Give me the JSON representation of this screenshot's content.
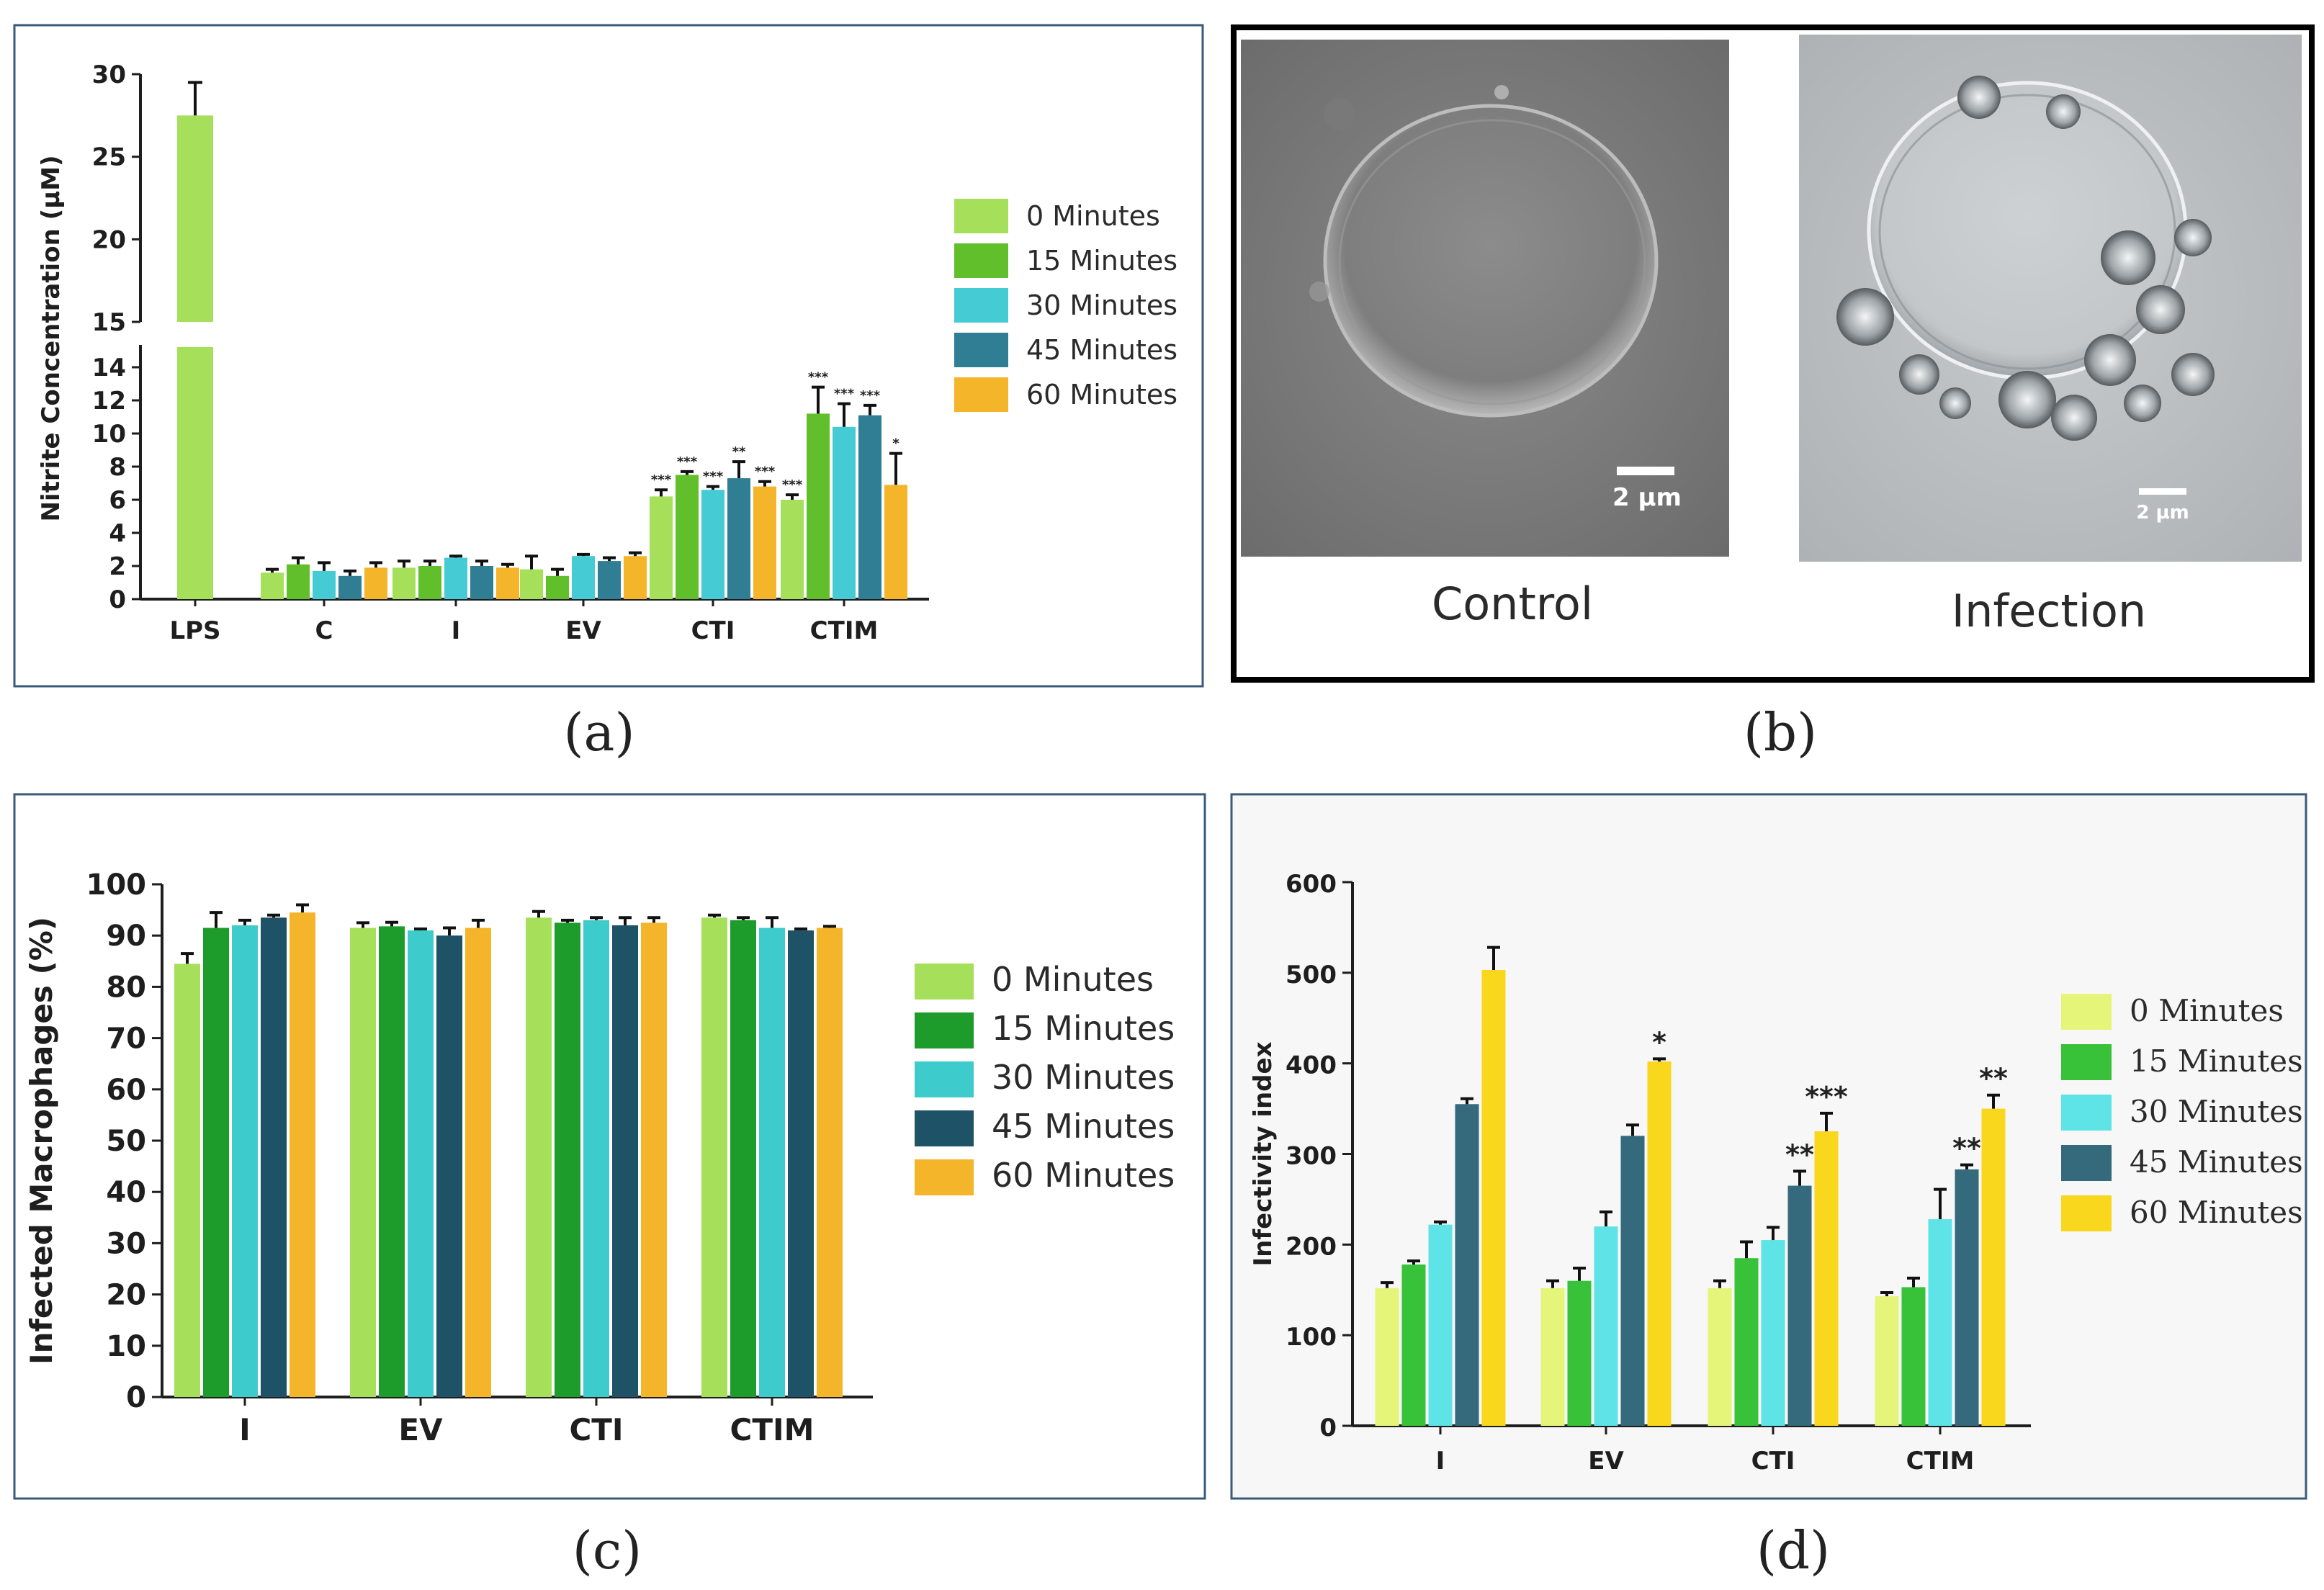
{
  "figure_labels": {
    "a": "(a)",
    "b": "(b)",
    "c": "(c)",
    "d": "(d)"
  },
  "colors": {
    "a": [
      "#a6e05a",
      "#62bf2c",
      "#45cbd4",
      "#2f7e93",
      "#f5b52b"
    ],
    "c": [
      "#a6e05a",
      "#1d9b2b",
      "#3ecbcb",
      "#1e5266",
      "#f5b52b"
    ],
    "d": [
      "#e5f57a",
      "#38c23a",
      "#5ee3e6",
      "#346a7c",
      "#f8d71c"
    ]
  },
  "micrographs": {
    "control": {
      "caption": "Control",
      "scale_label": "2 µm"
    },
    "infection": {
      "caption": "Infection",
      "scale_label": "2 µm"
    }
  },
  "chart_data": [
    {
      "id": "a",
      "type": "bar",
      "ylabel": "Nitrite Concentration (µM)",
      "xlabel": "",
      "axis_break": [
        15,
        15
      ],
      "ylim_lower": [
        0,
        15
      ],
      "ylim_upper": [
        15,
        30
      ],
      "yticks_lower": [
        "0",
        "2",
        "4",
        "6",
        "8",
        "10",
        "12",
        "14"
      ],
      "yticks_upper": [
        "15",
        "20",
        "25",
        "30"
      ],
      "categories": [
        "LPS",
        "C",
        "I",
        "EV",
        "CTI",
        "CTIM"
      ],
      "legend": [
        "0 Minutes",
        "15 Minutes",
        "30 Minutes",
        "45 Minutes",
        "60 Minutes"
      ],
      "legend_position": "right",
      "series": [
        {
          "name": "0 Minutes",
          "values": [
            27.5,
            1.6,
            1.9,
            1.8,
            6.2,
            6.0
          ],
          "errors": [
            2.0,
            0.2,
            0.4,
            0.8,
            0.4,
            0.3
          ]
        },
        {
          "name": "15 Minutes",
          "values": [
            null,
            2.1,
            2.0,
            1.4,
            7.5,
            11.2
          ],
          "errors": [
            null,
            0.4,
            0.3,
            0.4,
            0.2,
            1.6
          ]
        },
        {
          "name": "30 Minutes",
          "values": [
            null,
            1.7,
            2.5,
            2.6,
            6.6,
            10.4
          ],
          "errors": [
            null,
            0.5,
            0.1,
            0.1,
            0.2,
            1.4
          ]
        },
        {
          "name": "45 Minutes",
          "values": [
            null,
            1.4,
            2.0,
            2.3,
            7.3,
            11.1
          ],
          "errors": [
            null,
            0.3,
            0.3,
            0.2,
            1.0,
            0.6
          ]
        },
        {
          "name": "60 Minutes",
          "values": [
            null,
            1.9,
            1.9,
            2.6,
            6.8,
            6.9
          ],
          "errors": [
            null,
            0.3,
            0.2,
            0.2,
            0.3,
            1.9
          ]
        }
      ],
      "annotations": [
        [
          "",
          "",
          "",
          "",
          "***",
          "***"
        ],
        [
          "",
          "",
          "",
          "",
          "***",
          "***"
        ],
        [
          "",
          "",
          "",
          "",
          "***",
          "***"
        ],
        [
          "",
          "",
          "",
          "",
          "**",
          "***"
        ],
        [
          "",
          "",
          "",
          "",
          "***",
          "*"
        ]
      ]
    },
    {
      "id": "c",
      "type": "bar",
      "ylabel": "Infected Macrophages (%)",
      "xlabel": "",
      "ylim": [
        0,
        100
      ],
      "yticks": [
        "0",
        "10",
        "20",
        "30",
        "40",
        "50",
        "60",
        "70",
        "80",
        "90",
        "100"
      ],
      "categories": [
        "I",
        "EV",
        "CTI",
        "CTIM"
      ],
      "legend": [
        "0 Minutes",
        "15 Minutes",
        "30 Minutes",
        "45 Minutes",
        "60 Minutes"
      ],
      "legend_position": "right",
      "series": [
        {
          "name": "0 Minutes",
          "values": [
            84.5,
            91.5,
            93.5,
            93.5
          ],
          "errors": [
            2.0,
            1.0,
            1.2,
            0.5
          ]
        },
        {
          "name": "15 Minutes",
          "values": [
            91.5,
            91.8,
            92.5,
            93.0
          ],
          "errors": [
            3.0,
            0.8,
            0.5,
            0.5
          ]
        },
        {
          "name": "30 Minutes",
          "values": [
            92.0,
            91.0,
            93.0,
            91.5
          ],
          "errors": [
            1.0,
            0.3,
            0.5,
            2.0
          ]
        },
        {
          "name": "45 Minutes",
          "values": [
            93.5,
            90.0,
            92.0,
            91.0
          ],
          "errors": [
            0.5,
            1.5,
            1.5,
            0.3
          ]
        },
        {
          "name": "60 Minutes",
          "values": [
            94.5,
            91.5,
            92.5,
            91.5
          ],
          "errors": [
            1.5,
            1.5,
            1.0,
            0.3
          ]
        }
      ]
    },
    {
      "id": "d",
      "type": "bar",
      "ylabel": "Infectivity index",
      "xlabel": "",
      "ylim": [
        0,
        600
      ],
      "yticks": [
        "0",
        "100",
        "200",
        "300",
        "400",
        "500",
        "600"
      ],
      "categories": [
        "I",
        "EV",
        "CTI",
        "CTIM"
      ],
      "legend": [
        "0 Minutes",
        "15 Minutes",
        "30 Minutes",
        "45 Minutes",
        "60 Minutes"
      ],
      "legend_position": "right",
      "series": [
        {
          "name": "0 Minutes",
          "values": [
            152,
            152,
            152,
            143
          ],
          "errors": [
            6,
            8,
            8,
            4
          ]
        },
        {
          "name": "15 Minutes",
          "values": [
            178,
            160,
            185,
            153
          ],
          "errors": [
            4,
            14,
            18,
            10
          ]
        },
        {
          "name": "30 Minutes",
          "values": [
            222,
            220,
            205,
            228
          ],
          "errors": [
            3,
            16,
            14,
            33
          ]
        },
        {
          "name": "45 Minutes",
          "values": [
            355,
            320,
            265,
            283
          ],
          "errors": [
            6,
            12,
            16,
            5
          ]
        },
        {
          "name": "60 Minutes",
          "values": [
            503,
            402,
            325,
            350
          ],
          "errors": [
            25,
            3,
            20,
            15
          ]
        }
      ],
      "annotations": [
        [
          "",
          "",
          "",
          ""
        ],
        [
          "",
          "",
          "",
          ""
        ],
        [
          "",
          "",
          "",
          ""
        ],
        [
          "",
          "",
          "**",
          "**"
        ],
        [
          "",
          "*",
          "***",
          "**"
        ]
      ]
    }
  ]
}
